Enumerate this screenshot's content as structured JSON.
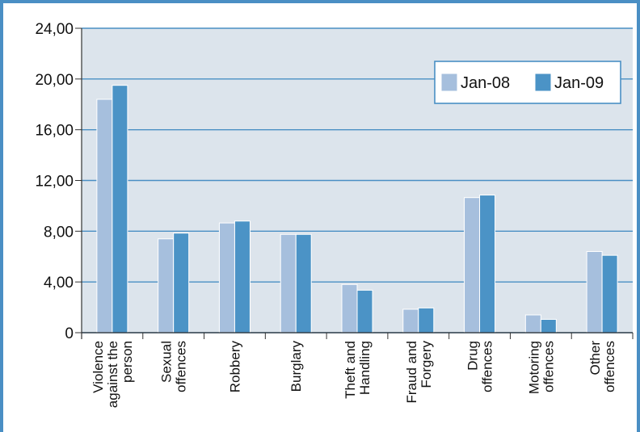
{
  "chart_data": {
    "type": "bar",
    "categories": [
      [
        "Violence",
        "against the",
        "person"
      ],
      [
        "Sexual",
        "offences"
      ],
      [
        "Robbery"
      ],
      [
        "Burglary"
      ],
      [
        "Theft and",
        "Handling"
      ],
      [
        "Fraud and",
        "Forgery"
      ],
      [
        "Drug",
        "offences"
      ],
      [
        "Motoring",
        "offences"
      ],
      [
        "Other",
        "offences"
      ]
    ],
    "series": [
      {
        "name": "Jan-08",
        "values": [
          18.4,
          7.4,
          8.65,
          7.75,
          3.8,
          1.85,
          10.65,
          1.4,
          6.4
        ]
      },
      {
        "name": "Jan-09",
        "values": [
          19.5,
          7.85,
          8.8,
          7.75,
          3.35,
          1.95,
          10.85,
          1.05,
          6.1
        ]
      }
    ],
    "yticks": [
      "0",
      "4,00",
      "8,00",
      "12,00",
      "16,00",
      "20,00",
      "24,00"
    ],
    "ylim": [
      0,
      24
    ],
    "grid": true,
    "legend_position": "top-right",
    "colors": {
      "plot_bg": "#dce4ec",
      "grid": "#4a8fc4",
      "frame": "#4a8fc4",
      "series": [
        "#a6bfdd",
        "#4b93c6"
      ]
    }
  }
}
